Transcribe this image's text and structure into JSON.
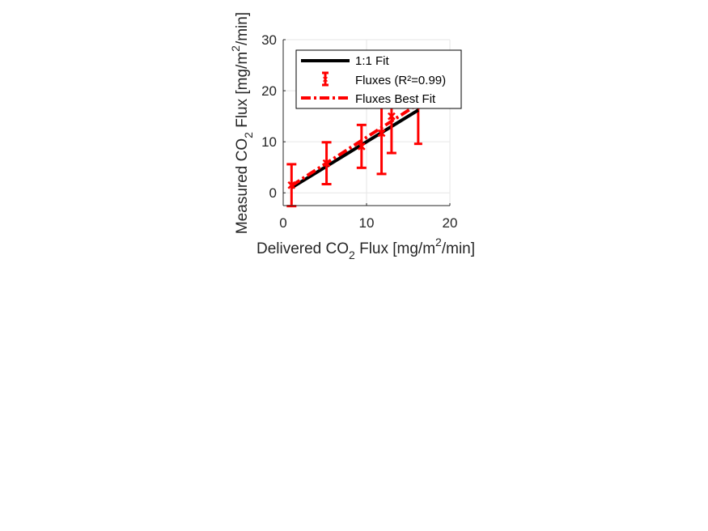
{
  "chart_data": {
    "type": "line",
    "xlabel": {
      "pre": "Delivered CO",
      "sub": "2",
      "mid": " Flux [mg/m",
      "sup": "2",
      "post": "/min]"
    },
    "ylabel": {
      "pre": "Measured CO",
      "sub": "2",
      "mid": " Flux [mg/m",
      "sup": "2",
      "post": "/min]"
    },
    "xlim": [
      0,
      20
    ],
    "ylim": [
      -2.5,
      30
    ],
    "xticks": [
      0,
      10,
      20
    ],
    "yticks": [
      0,
      10,
      20,
      30
    ],
    "xtick_labels": [
      "0",
      "10",
      "20"
    ],
    "ytick_labels": [
      "0",
      "10",
      "20",
      "30"
    ],
    "grid": true,
    "legend_position": "top-right",
    "series": [
      {
        "name": "1:1 Fit",
        "style": "solid",
        "color": "#000000",
        "x": [
          1,
          16.2
        ],
        "y": [
          1,
          16.2
        ]
      },
      {
        "name": "Fluxes (R²=0.99)",
        "style": "errorbar",
        "color": "#ff0000",
        "x": [
          1,
          5.2,
          9.4,
          11.8,
          13.0
        ],
        "y": [
          1.5,
          5.8,
          9.1,
          11.7,
          15.0
        ],
        "yerr_low": [
          -2.6,
          1.7,
          4.9,
          3.7,
          7.8
        ],
        "yerr_high": [
          5.6,
          9.9,
          13.3,
          19.5,
          22.0
        ]
      },
      {
        "name": "Fluxes Best Fit",
        "style": "dashdot",
        "color": "#ff0000",
        "x": [
          1,
          16.2
        ],
        "y": [
          1.4,
          17.4
        ]
      }
    ],
    "hidden_errorbar": {
      "x": 16.2,
      "y": 16.8,
      "yerr_low": 9.6,
      "yerr_high": 23.0
    }
  }
}
